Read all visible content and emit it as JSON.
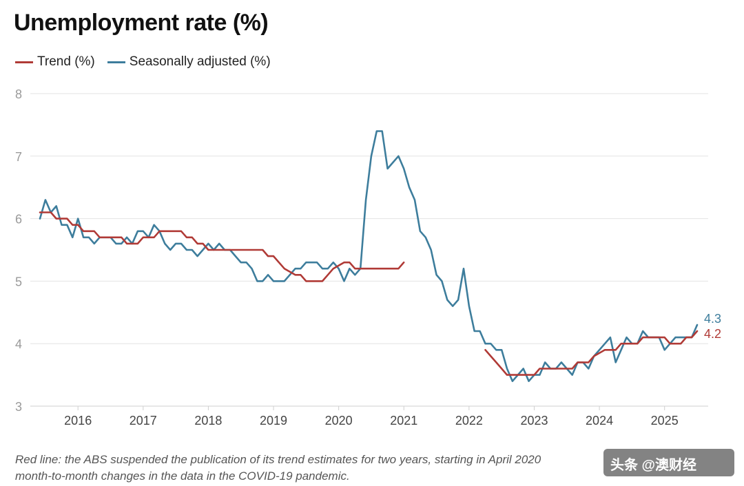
{
  "chart_data": {
    "type": "line",
    "title": "Unemployment rate (%)",
    "xlabel": "",
    "ylabel": "",
    "ylim": [
      3,
      8
    ],
    "xlim": [
      "2015-06",
      "2025-07"
    ],
    "y_ticks": [
      "3",
      "4",
      "5",
      "6",
      "7",
      "8"
    ],
    "x_ticks": [
      "2016",
      "2017",
      "2018",
      "2019",
      "2020",
      "2021",
      "2022",
      "2023",
      "2024",
      "2025"
    ],
    "grid": true,
    "legend": "top-left",
    "series": [
      {
        "name": "Trend (%)",
        "color": "#b03a36",
        "points": [
          [
            "2015-06",
            6.1
          ],
          [
            "2015-08",
            6.1
          ],
          [
            "2015-09",
            6.0
          ],
          [
            "2015-11",
            6.0
          ],
          [
            "2015-12",
            5.9
          ],
          [
            "2016-01",
            5.9
          ],
          [
            "2016-02",
            5.8
          ],
          [
            "2016-04",
            5.8
          ],
          [
            "2016-05",
            5.7
          ],
          [
            "2016-09",
            5.7
          ],
          [
            "2016-10",
            5.6
          ],
          [
            "2016-12",
            5.6
          ],
          [
            "2017-01",
            5.7
          ],
          [
            "2017-03",
            5.7
          ],
          [
            "2017-04",
            5.8
          ],
          [
            "2017-08",
            5.8
          ],
          [
            "2017-09",
            5.7
          ],
          [
            "2017-10",
            5.7
          ],
          [
            "2017-11",
            5.6
          ],
          [
            "2017-12",
            5.6
          ],
          [
            "2018-01",
            5.5
          ],
          [
            "2018-11",
            5.5
          ],
          [
            "2018-12",
            5.4
          ],
          [
            "2019-01",
            5.4
          ],
          [
            "2019-02",
            5.3
          ],
          [
            "2019-03",
            5.2
          ],
          [
            "2019-05",
            5.1
          ],
          [
            "2019-06",
            5.1
          ],
          [
            "2019-07",
            5.0
          ],
          [
            "2019-10",
            5.0
          ],
          [
            "2019-11",
            5.1
          ],
          [
            "2019-12",
            5.2
          ],
          [
            "2020-02",
            5.3
          ],
          [
            "2020-03",
            5.3
          ],
          [
            "2020-04",
            5.2
          ],
          [
            "2020-12",
            5.2
          ],
          [
            "2021-01",
            5.3
          ]
        ]
      },
      {
        "name": "Trend (%)",
        "color": "#b03a36",
        "points": [
          [
            "2022-04",
            3.9
          ],
          [
            "2022-05",
            3.8
          ],
          [
            "2022-06",
            3.7
          ],
          [
            "2022-07",
            3.6
          ],
          [
            "2022-08",
            3.5
          ],
          [
            "2023-01",
            3.5
          ],
          [
            "2023-02",
            3.6
          ],
          [
            "2023-08",
            3.6
          ],
          [
            "2023-09",
            3.7
          ],
          [
            "2023-11",
            3.7
          ],
          [
            "2023-12",
            3.8
          ],
          [
            "2024-02",
            3.9
          ],
          [
            "2024-04",
            3.9
          ],
          [
            "2024-05",
            4.0
          ],
          [
            "2024-08",
            4.0
          ],
          [
            "2024-09",
            4.1
          ],
          [
            "2025-01",
            4.1
          ],
          [
            "2025-02",
            4.0
          ],
          [
            "2025-04",
            4.0
          ],
          [
            "2025-05",
            4.1
          ],
          [
            "2025-06",
            4.1
          ],
          [
            "2025-07",
            4.2
          ]
        ]
      },
      {
        "name": "Seasonally adjusted (%)",
        "color": "#3d7d9c",
        "points": [
          [
            "2015-06",
            6.0
          ],
          [
            "2015-07",
            6.3
          ],
          [
            "2015-08",
            6.1
          ],
          [
            "2015-09",
            6.2
          ],
          [
            "2015-10",
            5.9
          ],
          [
            "2015-11",
            5.9
          ],
          [
            "2015-12",
            5.7
          ],
          [
            "2016-01",
            6.0
          ],
          [
            "2016-02",
            5.7
          ],
          [
            "2016-03",
            5.7
          ],
          [
            "2016-04",
            5.6
          ],
          [
            "2016-05",
            5.7
          ],
          [
            "2016-06",
            5.7
          ],
          [
            "2016-07",
            5.7
          ],
          [
            "2016-08",
            5.6
          ],
          [
            "2016-09",
            5.6
          ],
          [
            "2016-10",
            5.7
          ],
          [
            "2016-11",
            5.6
          ],
          [
            "2016-12",
            5.8
          ],
          [
            "2017-01",
            5.8
          ],
          [
            "2017-02",
            5.7
          ],
          [
            "2017-03",
            5.9
          ],
          [
            "2017-04",
            5.8
          ],
          [
            "2017-05",
            5.6
          ],
          [
            "2017-06",
            5.5
          ],
          [
            "2017-07",
            5.6
          ],
          [
            "2017-08",
            5.6
          ],
          [
            "2017-09",
            5.5
          ],
          [
            "2017-10",
            5.5
          ],
          [
            "2017-11",
            5.4
          ],
          [
            "2017-12",
            5.5
          ],
          [
            "2018-01",
            5.6
          ],
          [
            "2018-02",
            5.5
          ],
          [
            "2018-03",
            5.6
          ],
          [
            "2018-04",
            5.5
          ],
          [
            "2018-05",
            5.5
          ],
          [
            "2018-06",
            5.4
          ],
          [
            "2018-07",
            5.3
          ],
          [
            "2018-08",
            5.3
          ],
          [
            "2018-09",
            5.2
          ],
          [
            "2018-10",
            5.0
          ],
          [
            "2018-11",
            5.0
          ],
          [
            "2018-12",
            5.1
          ],
          [
            "2019-01",
            5.0
          ],
          [
            "2019-02",
            5.0
          ],
          [
            "2019-03",
            5.0
          ],
          [
            "2019-04",
            5.1
          ],
          [
            "2019-05",
            5.2
          ],
          [
            "2019-06",
            5.2
          ],
          [
            "2019-07",
            5.3
          ],
          [
            "2019-08",
            5.3
          ],
          [
            "2019-09",
            5.3
          ],
          [
            "2019-10",
            5.2
          ],
          [
            "2019-11",
            5.2
          ],
          [
            "2019-12",
            5.3
          ],
          [
            "2020-01",
            5.2
          ],
          [
            "2020-02",
            5.0
          ],
          [
            "2020-03",
            5.2
          ],
          [
            "2020-04",
            5.1
          ],
          [
            "2020-05",
            5.2
          ],
          [
            "2020-06",
            6.3
          ],
          [
            "2020-07",
            7.0
          ],
          [
            "2020-08",
            7.4
          ],
          [
            "2020-09",
            7.4
          ],
          [
            "2020-10",
            6.8
          ],
          [
            "2020-11",
            6.9
          ],
          [
            "2020-12",
            7.0
          ],
          [
            "2021-01",
            6.8
          ],
          [
            "2021-02",
            6.5
          ],
          [
            "2021-03",
            6.3
          ],
          [
            "2021-04",
            5.8
          ],
          [
            "2021-05",
            5.7
          ],
          [
            "2021-06",
            5.5
          ],
          [
            "2021-07",
            5.1
          ],
          [
            "2021-08",
            5.0
          ],
          [
            "2021-09",
            4.7
          ],
          [
            "2021-10",
            4.6
          ],
          [
            "2021-11",
            4.7
          ],
          [
            "2021-12",
            5.2
          ],
          [
            "2022-01",
            4.6
          ],
          [
            "2022-02",
            4.2
          ],
          [
            "2022-03",
            4.2
          ],
          [
            "2022-04",
            4.0
          ],
          [
            "2022-05",
            4.0
          ],
          [
            "2022-06",
            3.9
          ],
          [
            "2022-07",
            3.9
          ],
          [
            "2022-08",
            3.6
          ],
          [
            "2022-09",
            3.4
          ],
          [
            "2022-10",
            3.5
          ],
          [
            "2022-11",
            3.6
          ],
          [
            "2022-12",
            3.4
          ],
          [
            "2023-01",
            3.5
          ],
          [
            "2023-02",
            3.5
          ],
          [
            "2023-03",
            3.7
          ],
          [
            "2023-04",
            3.6
          ],
          [
            "2023-05",
            3.6
          ],
          [
            "2023-06",
            3.7
          ],
          [
            "2023-07",
            3.6
          ],
          [
            "2023-08",
            3.5
          ],
          [
            "2023-09",
            3.7
          ],
          [
            "2023-10",
            3.7
          ],
          [
            "2023-11",
            3.6
          ],
          [
            "2023-12",
            3.8
          ],
          [
            "2024-01",
            3.9
          ],
          [
            "2024-02",
            4.0
          ],
          [
            "2024-03",
            4.1
          ],
          [
            "2024-04",
            3.7
          ],
          [
            "2024-05",
            3.9
          ],
          [
            "2024-06",
            4.1
          ],
          [
            "2024-07",
            4.0
          ],
          [
            "2024-08",
            4.0
          ],
          [
            "2024-09",
            4.2
          ],
          [
            "2024-10",
            4.1
          ],
          [
            "2024-11",
            4.1
          ],
          [
            "2024-12",
            4.1
          ],
          [
            "2025-01",
            3.9
          ],
          [
            "2025-02",
            4.0
          ],
          [
            "2025-03",
            4.1
          ],
          [
            "2025-04",
            4.1
          ],
          [
            "2025-05",
            4.1
          ],
          [
            "2025-06",
            4.1
          ],
          [
            "2025-07",
            4.3
          ]
        ]
      }
    ],
    "end_labels": [
      {
        "text": "4.3",
        "color": "#3d7d9c",
        "value": 4.3
      },
      {
        "text": "4.2",
        "color": "#b03a36",
        "value": 4.2
      }
    ]
  },
  "legend": {
    "trend_label": "Trend (%)",
    "trend_color": "#b03a36",
    "sa_label": "Seasonally adjusted (%)",
    "sa_color": "#3d7d9c"
  },
  "footnote": {
    "line1": "Red line: the ABS suspended the publication of its trend estimates for two years, starting in April 2020",
    "line2": "month-to-month changes in the data in the COVID-19 pandemic."
  },
  "watermark": {
    "text": "头条 @澳财经"
  }
}
